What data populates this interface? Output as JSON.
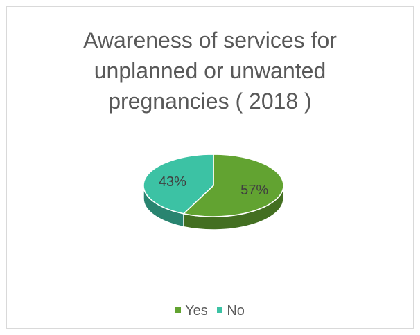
{
  "chart_data": {
    "type": "pie",
    "title": "Awareness of services for\nunplanned or unwanted\npregnancies ( 2018 )",
    "categories": [
      "Yes",
      "No"
    ],
    "values": [
      57,
      43
    ],
    "labels": [
      "57%",
      "43%"
    ],
    "colors": [
      "#62A331",
      "#3CC2A4"
    ],
    "legend": "bottom"
  }
}
